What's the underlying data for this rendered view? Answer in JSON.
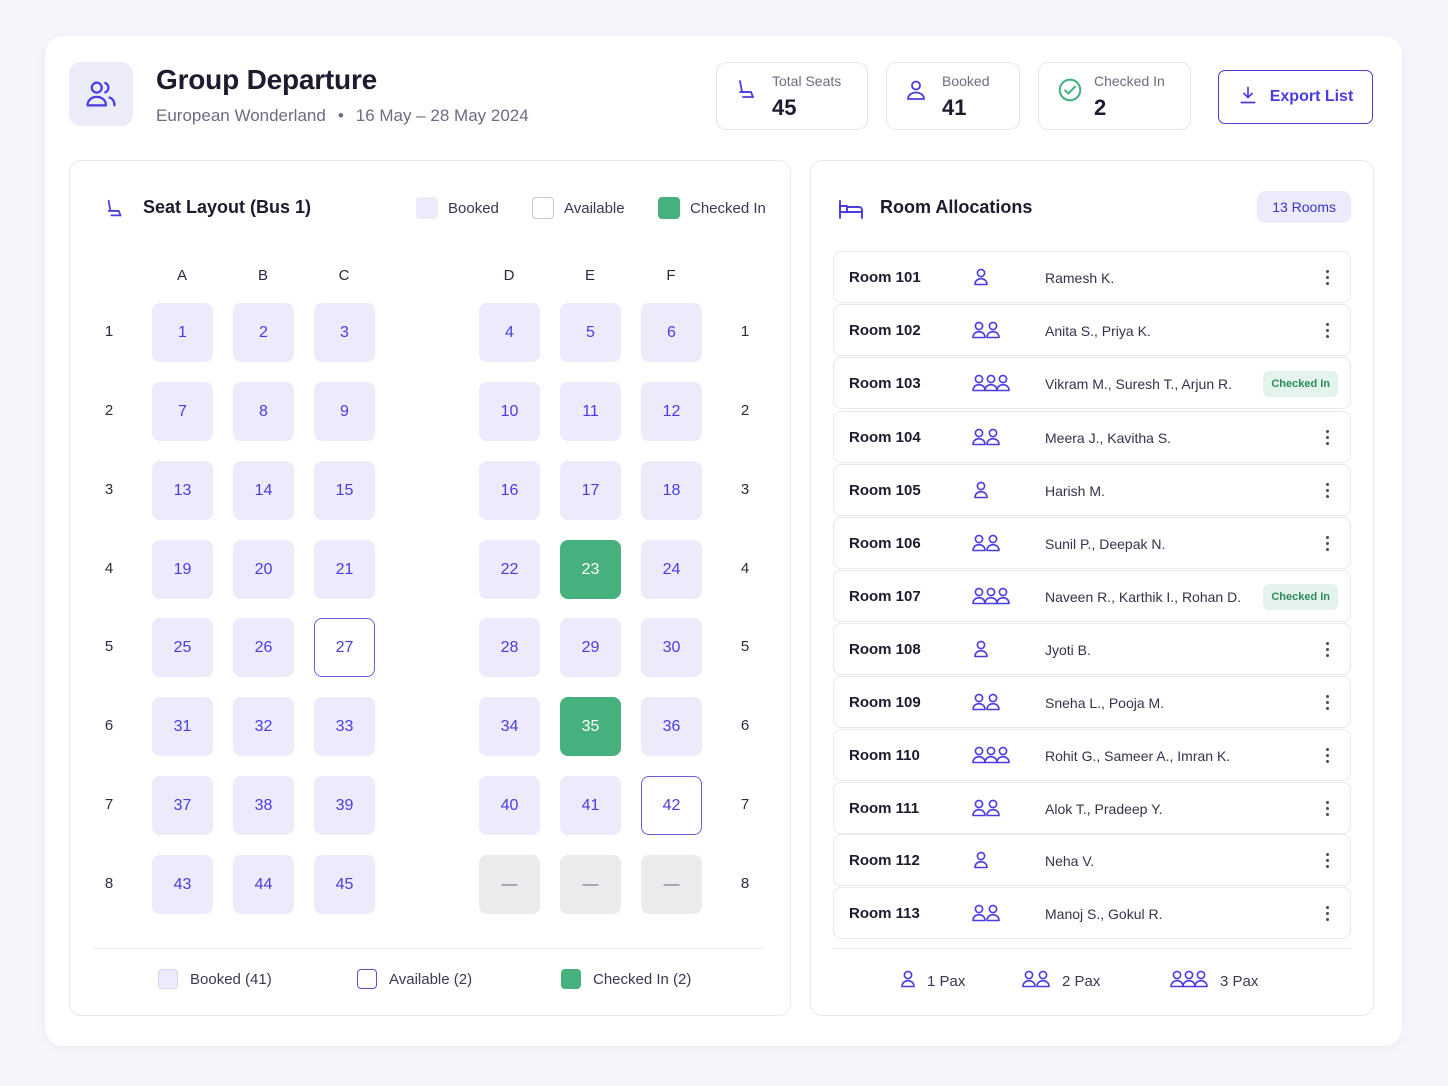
{
  "header": {
    "title": "Group Departure",
    "tour": "European Wonderland",
    "separator": "•",
    "dates": "16 May – 28 May 2024",
    "export_label": "Export List"
  },
  "stats": {
    "total": {
      "label": "Total Seats",
      "value": "45"
    },
    "booked": {
      "label": "Booked",
      "value": "41"
    },
    "checked": {
      "label": "Checked In",
      "value": "2"
    }
  },
  "seat_panel": {
    "title": "Seat Layout (Bus 1)",
    "legend": {
      "booked": "Booked",
      "available": "Available",
      "checked": "Checked In"
    },
    "columns": [
      "A",
      "B",
      "C",
      "D",
      "E",
      "F"
    ],
    "rows": [
      "1",
      "2",
      "3",
      "4",
      "5",
      "6",
      "7",
      "8"
    ],
    "seats": [
      [
        {
          "l": "1",
          "s": "booked"
        },
        {
          "l": "2",
          "s": "booked"
        },
        {
          "l": "3",
          "s": "booked"
        },
        {
          "l": "4",
          "s": "booked"
        },
        {
          "l": "5",
          "s": "booked"
        },
        {
          "l": "6",
          "s": "booked"
        }
      ],
      [
        {
          "l": "7",
          "s": "booked"
        },
        {
          "l": "8",
          "s": "booked"
        },
        {
          "l": "9",
          "s": "booked"
        },
        {
          "l": "10",
          "s": "booked"
        },
        {
          "l": "11",
          "s": "booked"
        },
        {
          "l": "12",
          "s": "booked"
        }
      ],
      [
        {
          "l": "13",
          "s": "booked"
        },
        {
          "l": "14",
          "s": "booked"
        },
        {
          "l": "15",
          "s": "booked"
        },
        {
          "l": "16",
          "s": "booked"
        },
        {
          "l": "17",
          "s": "booked"
        },
        {
          "l": "18",
          "s": "booked"
        }
      ],
      [
        {
          "l": "19",
          "s": "booked"
        },
        {
          "l": "20",
          "s": "booked"
        },
        {
          "l": "21",
          "s": "booked"
        },
        {
          "l": "22",
          "s": "booked"
        },
        {
          "l": "23",
          "s": "checked"
        },
        {
          "l": "24",
          "s": "booked"
        }
      ],
      [
        {
          "l": "25",
          "s": "booked"
        },
        {
          "l": "26",
          "s": "booked"
        },
        {
          "l": "27",
          "s": "available"
        },
        {
          "l": "28",
          "s": "booked"
        },
        {
          "l": "29",
          "s": "booked"
        },
        {
          "l": "30",
          "s": "booked"
        }
      ],
      [
        {
          "l": "31",
          "s": "booked"
        },
        {
          "l": "32",
          "s": "booked"
        },
        {
          "l": "33",
          "s": "booked"
        },
        {
          "l": "34",
          "s": "booked"
        },
        {
          "l": "35",
          "s": "checked"
        },
        {
          "l": "36",
          "s": "booked"
        }
      ],
      [
        {
          "l": "37",
          "s": "booked"
        },
        {
          "l": "38",
          "s": "booked"
        },
        {
          "l": "39",
          "s": "booked"
        },
        {
          "l": "40",
          "s": "booked"
        },
        {
          "l": "41",
          "s": "booked"
        },
        {
          "l": "42",
          "s": "available"
        }
      ],
      [
        {
          "l": "43",
          "s": "booked"
        },
        {
          "l": "44",
          "s": "booked"
        },
        {
          "l": "45",
          "s": "booked"
        },
        {
          "l": "—",
          "s": "empty"
        },
        {
          "l": "—",
          "s": "empty"
        },
        {
          "l": "—",
          "s": "empty"
        }
      ]
    ],
    "summary": {
      "booked": "Booked (41)",
      "available": "Available (2)",
      "checked": "Checked In (2)"
    }
  },
  "room_panel": {
    "title": "Room Allocations",
    "badge": "13 Rooms",
    "rooms": [
      {
        "name": "Room 101",
        "pax": 1,
        "guests": "Ramesh K.",
        "checked_in": ""
      },
      {
        "name": "Room 102",
        "pax": 2,
        "guests": "Anita S., Priya K.",
        "checked_in": ""
      },
      {
        "name": "Room 103",
        "pax": 3,
        "guests": "Vikram M., Suresh T., Arjun R.",
        "checked_in": "Checked In"
      },
      {
        "name": "Room 104",
        "pax": 2,
        "guests": "Meera J., Kavitha S.",
        "checked_in": ""
      },
      {
        "name": "Room 105",
        "pax": 1,
        "guests": "Harish M.",
        "checked_in": ""
      },
      {
        "name": "Room 106",
        "pax": 2,
        "guests": "Sunil P., Deepak N.",
        "checked_in": ""
      },
      {
        "name": "Room 107",
        "pax": 3,
        "guests": "Naveen R., Karthik I., Rohan D.",
        "checked_in": "Checked In"
      },
      {
        "name": "Room 108",
        "pax": 1,
        "guests": "Jyoti B.",
        "checked_in": ""
      },
      {
        "name": "Room 109",
        "pax": 2,
        "guests": "Sneha L., Pooja M.",
        "checked_in": ""
      },
      {
        "name": "Room 110",
        "pax": 3,
        "guests": "Rohit G., Sameer A., Imran K.",
        "checked_in": ""
      },
      {
        "name": "Room 111",
        "pax": 2,
        "guests": "Alok T., Pradeep Y.",
        "checked_in": ""
      },
      {
        "name": "Room 112",
        "pax": 1,
        "guests": "Neha V.",
        "checked_in": ""
      },
      {
        "name": "Room 113",
        "pax": 2,
        "guests": "Manoj S., Gokul R.",
        "checked_in": ""
      }
    ],
    "pax_legend": {
      "one": "1 Pax",
      "two": "2 Pax",
      "three": "3 Pax"
    }
  },
  "colors": {
    "accent": "#4a3ce0",
    "booked": "#eceafb",
    "checked": "#47b07f",
    "empty": "#ebebee"
  },
  "icons": {
    "header": "users-icon",
    "total": "seat-icon",
    "booked": "user-icon",
    "checked": "check-circle-icon",
    "export": "download-icon",
    "room": "bed-icon"
  }
}
